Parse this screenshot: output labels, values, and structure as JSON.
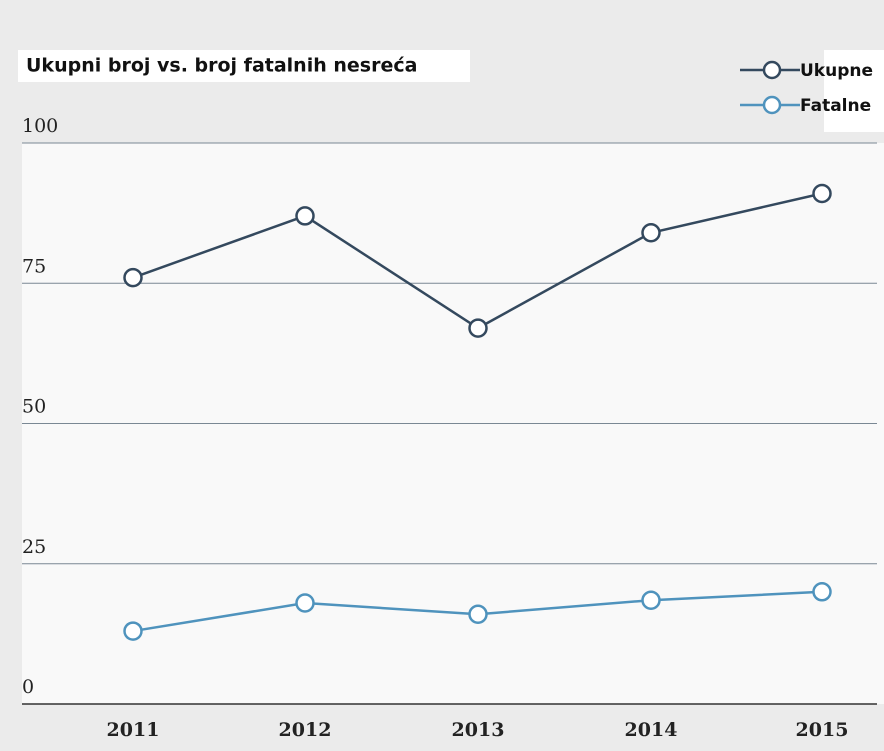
{
  "chart_data": {
    "type": "line",
    "title": "Ukupni broj vs. broj fatalnih nesreća",
    "categories": [
      "2011",
      "2012",
      "2013",
      "2014",
      "2015"
    ],
    "series": [
      {
        "name": "Ukupne",
        "color": "#34495e",
        "values": [
          76,
          87,
          67,
          84,
          91
        ]
      },
      {
        "name": "Fatalne",
        "color": "#4f93bd",
        "values": [
          13,
          18,
          16,
          18.5,
          20
        ]
      }
    ],
    "ylim": [
      0,
      100
    ],
    "yticks": [
      0,
      25,
      50,
      75,
      100
    ],
    "grid": true,
    "legend": "top-right"
  }
}
